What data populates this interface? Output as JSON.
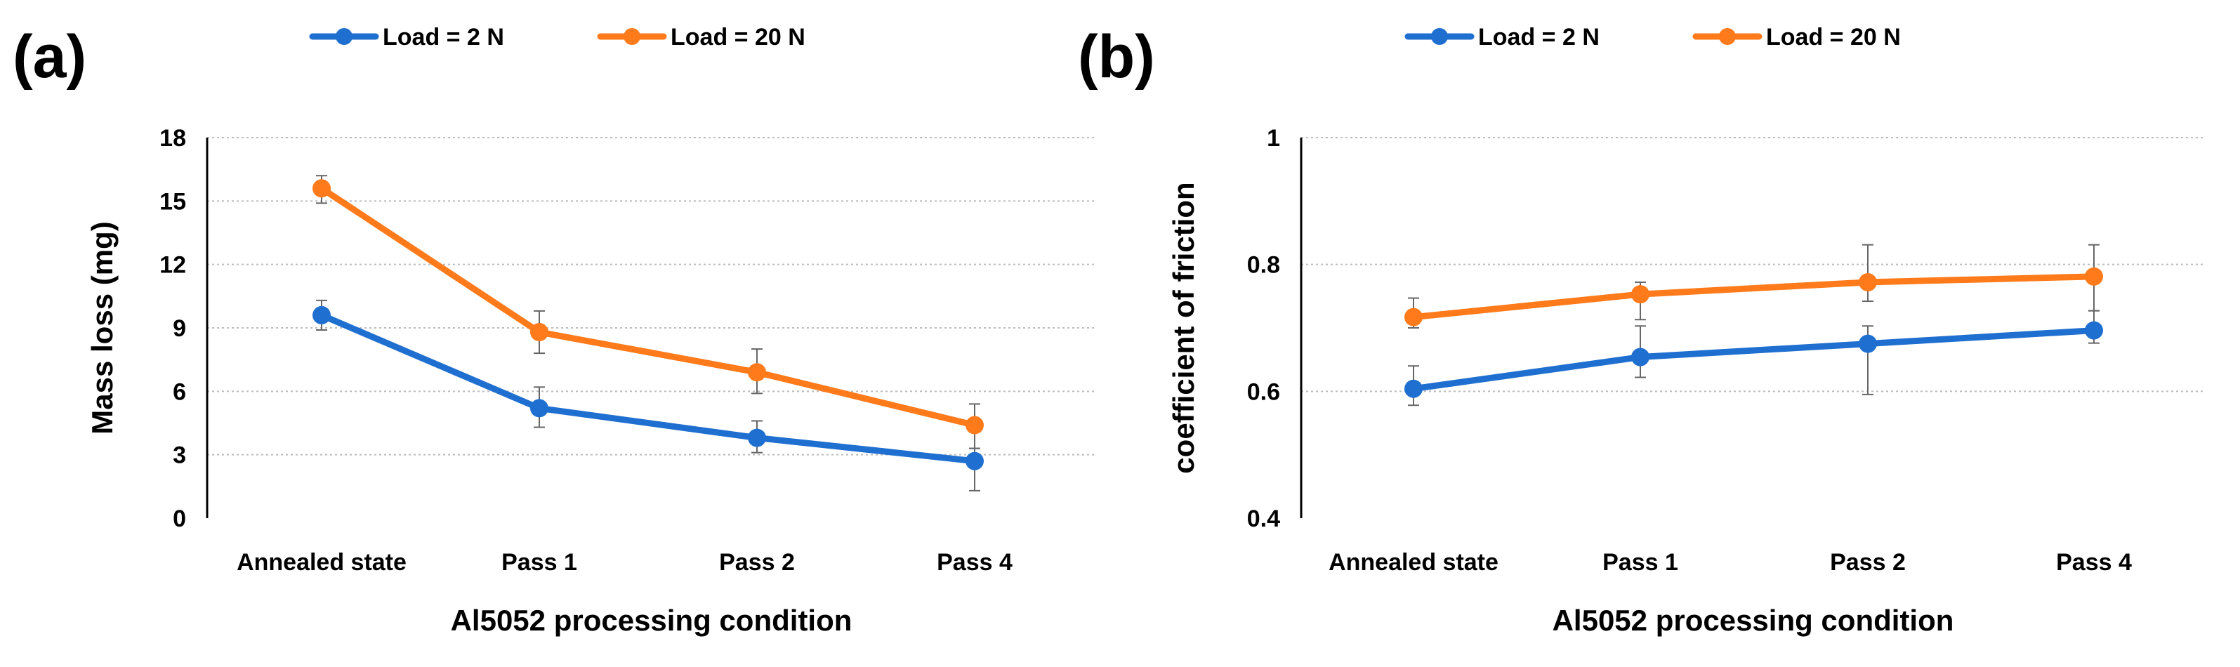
{
  "colors": {
    "blue": "#1f6fd0",
    "orange": "#ff7a1a",
    "error": "#666666",
    "grid": "#bbbbbb"
  },
  "chart_data": [
    {
      "panel_label": "(a)",
      "type": "line",
      "title": "",
      "xlabel": "Al5052 processing condition",
      "ylabel": "Mass loss (mg)",
      "categories": [
        "Annealed state",
        "Pass 1",
        "Pass 2",
        "Pass 4"
      ],
      "ylim": [
        0,
        18
      ],
      "yticks": [
        "0",
        "3",
        "6",
        "9",
        "12",
        "15",
        "18"
      ],
      "ytick_values": [
        0,
        3,
        6,
        9,
        12,
        15,
        18
      ],
      "grid": true,
      "legend_position": "top-center",
      "series": [
        {
          "name": "Load = 2 N",
          "color": "#1f6fd0",
          "values": [
            9.6,
            5.2,
            3.8,
            2.7
          ],
          "err_high": [
            10.3,
            6.2,
            4.6,
            3.3
          ],
          "err_low": [
            8.9,
            4.3,
            3.1,
            1.3
          ]
        },
        {
          "name": "Load = 20 N",
          "color": "#ff7a1a",
          "values": [
            15.6,
            8.8,
            6.9,
            4.4
          ],
          "err_high": [
            16.2,
            9.8,
            8.0,
            5.4
          ],
          "err_low": [
            14.9,
            7.8,
            5.9,
            3.3
          ]
        }
      ]
    },
    {
      "panel_label": "(b)",
      "type": "line",
      "title": "",
      "xlabel": "Al5052 processing condition",
      "ylabel": "coefficient of friction",
      "categories": [
        "Annealed state",
        "Pass 1",
        "Pass 2",
        "Pass 4"
      ],
      "ylim": [
        0.4,
        1.0
      ],
      "yticks": [
        "0.4",
        "0.6",
        "0.8",
        "1"
      ],
      "ytick_values": [
        0.4,
        0.6,
        0.8,
        1.0
      ],
      "grid": true,
      "legend_position": "top-center",
      "series": [
        {
          "name": "Load = 2 N",
          "color": "#1f6fd0",
          "values": [
            0.604,
            0.654,
            0.675,
            0.696
          ],
          "err_high": [
            0.64,
            0.703,
            0.703,
            0.727
          ],
          "err_low": [
            0.578,
            0.622,
            0.595,
            0.676
          ]
        },
        {
          "name": "Load = 20 N",
          "color": "#ff7a1a",
          "values": [
            0.717,
            0.753,
            0.772,
            0.781
          ],
          "err_high": [
            0.747,
            0.772,
            0.831,
            0.831
          ],
          "err_low": [
            0.7,
            0.713,
            0.742,
            0.727
          ]
        }
      ]
    }
  ]
}
